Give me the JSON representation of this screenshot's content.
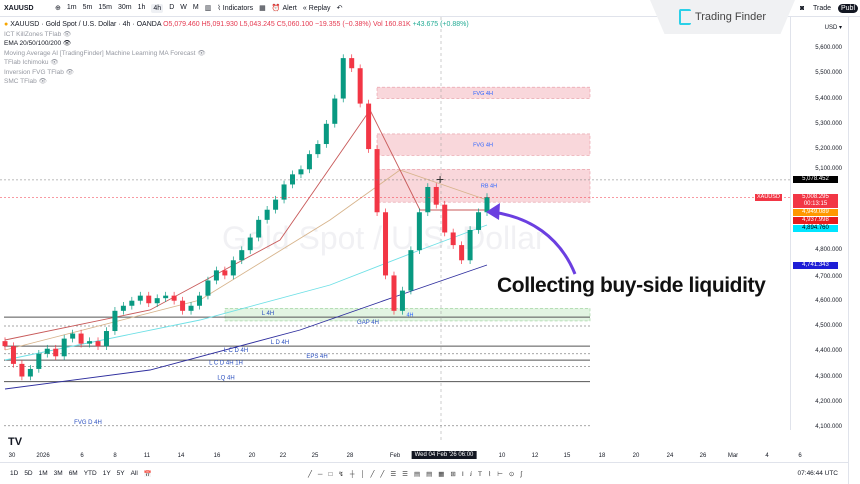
{
  "toolbar": {
    "symbol": "XAUUSD",
    "timeframes": [
      "1m",
      "5m",
      "15m",
      "30m",
      "1h",
      "4h",
      "D",
      "W",
      "M"
    ],
    "active_timeframe": "4h",
    "indicators_label": "Indicators",
    "alert_label": "Alert",
    "replay_label": "Replay",
    "trade_label": "Trade",
    "publish_label": "Publ"
  },
  "logo": {
    "text": "Trading Finder"
  },
  "legend": {
    "title": "XAUUSD · Gold Spot / U.S. Dollar · 4h · OANDA",
    "open": "O5,079.460",
    "high": "H5,091.930",
    "low": "L5,043.245",
    "close": "C5,060.100",
    "change": "−19.355 (−0.38%)",
    "volume": "Vol 160.81K",
    "vol_change": "+43.675 (+0.88%)",
    "indicators": [
      "ICT KillZones TFlab",
      "EMA 20/50/100/200",
      "Moving Average AI [TradingFinder] Machine Learning MA Forecast",
      "TFlab Ichimoku",
      "Inversion FVG TFlab",
      "SMC TFlab"
    ]
  },
  "watermark": "Gold Spot / U.S. Dollar",
  "price_axis": {
    "currency": "USD",
    "ticks": [
      "5,600.000",
      "5,500.000",
      "5,400.000",
      "5,300.000",
      "5,200.000",
      "5,100.000",
      "4,800.000",
      "4,700.000",
      "4,600.000",
      "4,500.000",
      "4,400.000",
      "4,300.000",
      "4,200.000",
      "4,100.000"
    ],
    "labels": [
      {
        "text": "5,078.452",
        "price": 5078,
        "color": "#000000"
      },
      {
        "text": "5,008.295",
        "sub": "00:13:15",
        "price": 5008,
        "color": "#f23645"
      },
      {
        "text": "4,949.089",
        "price": 4949,
        "color": "#ff9800"
      },
      {
        "text": "4,937.998",
        "price": 4930,
        "color": "#e81e1e"
      },
      {
        "text": "4,894.760",
        "price": 4900,
        "color": "#00e5ff"
      },
      {
        "text": "4,741.343",
        "price": 4741,
        "color": "#1e1ed6"
      }
    ],
    "symbol_tag": "XAUUSD"
  },
  "zones": [
    {
      "label": "FVG 4H",
      "top": 5445,
      "bottom": 5400,
      "color": "#f7c6cc"
    },
    {
      "label": "FVG 4H",
      "top": 5260,
      "bottom": 5175,
      "color": "#f7c6cc"
    },
    {
      "label": "RB 4H",
      "top": 5120,
      "bottom": 4990,
      "color": "#f7c6cc"
    },
    {
      "label": "4H",
      "top": 4570,
      "bottom": 4520,
      "color": "#d6f0d6"
    }
  ],
  "levels": [
    {
      "label": "L 4H",
      "price": 4535
    },
    {
      "label": "GAP 4H",
      "price": 4500
    },
    {
      "label": "L D 4H",
      "price": 4420
    },
    {
      "label": "L C D 4H",
      "price": 4390
    },
    {
      "label": "EPS 4H",
      "price": 4365
    },
    {
      "label": "L C D 4H 1H",
      "price": 4340
    },
    {
      "label": "LQ 4H",
      "price": 4280
    },
    {
      "label": "FVG D 4H",
      "price": 4105
    }
  ],
  "closes": [
    4420,
    4350,
    4300,
    4330,
    4390,
    4410,
    4380,
    4450,
    4470,
    4430,
    4440,
    4420,
    4480,
    4560,
    4580,
    4600,
    4620,
    4590,
    4610,
    4620,
    4600,
    4560,
    4580,
    4620,
    4680,
    4720,
    4700,
    4760,
    4800,
    4850,
    4920,
    4960,
    5000,
    5060,
    5100,
    5120,
    5180,
    5220,
    5300,
    5400,
    5560,
    5520,
    5380,
    5200,
    4950,
    4700,
    4560,
    4640,
    4800,
    4950,
    5050,
    4980,
    4870,
    4820,
    4760,
    4880,
    4950,
    5010
  ],
  "annotation": "Collecting buy-side liquidity",
  "crosshair_date": "Wed 04 Feb '26  06:00",
  "time_axis": [
    "30",
    "2026",
    "6",
    "8",
    "11",
    "14",
    "16",
    "20",
    "22",
    "25",
    "28",
    "Feb",
    "10",
    "12",
    "15",
    "18",
    "20",
    "24",
    "26",
    "Mar",
    "4",
    "6"
  ],
  "bottom": {
    "ranges": [
      "1D",
      "5D",
      "1M",
      "3M",
      "6M",
      "YTD",
      "1Y",
      "5Y",
      "All"
    ],
    "time": "07:46:44 UTC"
  }
}
